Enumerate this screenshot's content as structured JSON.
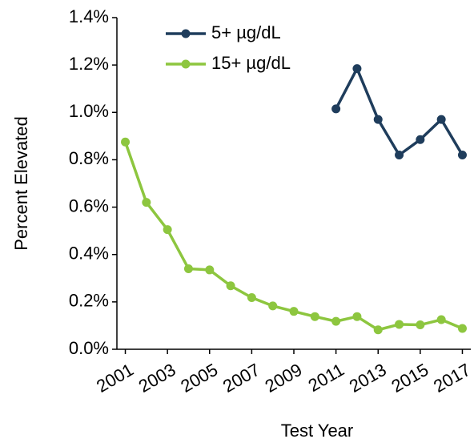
{
  "chart_data": {
    "type": "line",
    "x_label": "Test Year",
    "y_label": "Percent Elevated",
    "x": [
      2001,
      2002,
      2003,
      2004,
      2005,
      2006,
      2007,
      2008,
      2009,
      2010,
      2011,
      2012,
      2013,
      2014,
      2015,
      2016,
      2017
    ],
    "series": [
      {
        "name": "5+ µg/dL",
        "color": "#1f3d5c",
        "values": [
          null,
          null,
          null,
          null,
          null,
          null,
          null,
          null,
          null,
          null,
          1.015,
          1.185,
          0.97,
          0.82,
          0.885,
          0.97,
          0.82
        ]
      },
      {
        "name": "15+ µg/dL",
        "color": "#8dc63f",
        "values": [
          0.875,
          0.62,
          0.505,
          0.34,
          0.335,
          0.268,
          0.218,
          0.183,
          0.16,
          0.138,
          0.118,
          0.138,
          0.082,
          0.105,
          0.103,
          0.125,
          0.088
        ]
      }
    ],
    "xlim": [
      2000.6,
      2017.4
    ],
    "xticks": [
      2001,
      2003,
      2005,
      2007,
      2009,
      2011,
      2013,
      2015,
      2017
    ],
    "ylim": [
      0,
      1.4
    ],
    "yticks": [
      {
        "value": 0,
        "label": "0.0%"
      },
      {
        "value": 0.2,
        "label": "0.2%"
      },
      {
        "value": 0.4,
        "label": "0.4%"
      },
      {
        "value": 0.6,
        "label": "0.6%"
      },
      {
        "value": 0.8,
        "label": "0.8%"
      },
      {
        "value": 1.0,
        "label": "1.0%"
      },
      {
        "value": 1.2,
        "label": "1.2%"
      },
      {
        "value": 1.4,
        "label": "1.4%"
      }
    ],
    "legend": "top-left",
    "grid": false
  }
}
